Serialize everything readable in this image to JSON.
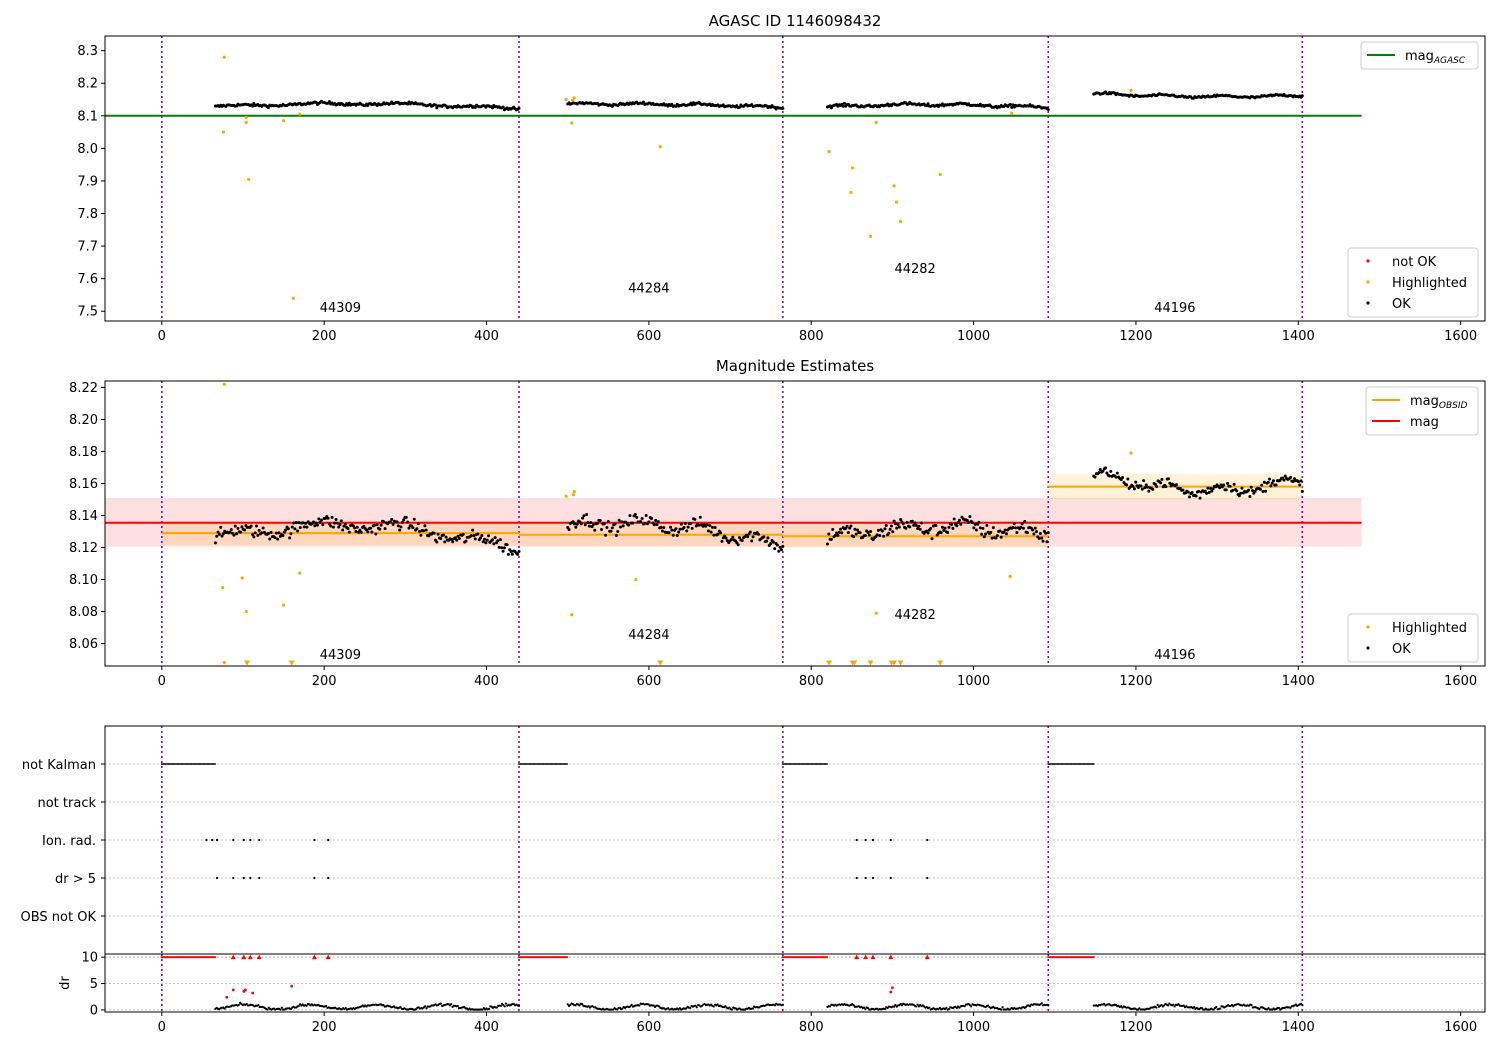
{
  "chart_data": [
    {
      "type": "scatter",
      "title": "AGASC ID 1146098432",
      "xlim": [
        -70,
        1630
      ],
      "ylim": [
        7.47,
        8.345
      ],
      "x_ticks": [
        0,
        200,
        400,
        600,
        800,
        1000,
        1200,
        1400,
        1600
      ],
      "y_ticks": [
        7.5,
        7.6,
        7.7,
        7.8,
        7.9,
        8.0,
        8.1,
        8.2,
        8.3
      ],
      "y_tick_decimals": 1,
      "obsid_boundaries": [
        0,
        440,
        765,
        1092,
        1405
      ],
      "obsid_labels": [
        {
          "text": "44309",
          "x": 220,
          "y": 7.51
        },
        {
          "text": "44284",
          "x": 600,
          "y": 7.57
        },
        {
          "text": "44282",
          "x": 928,
          "y": 7.63
        },
        {
          "text": "44196",
          "x": 1248,
          "y": 7.51
        }
      ],
      "lines": [
        {
          "name": "mag_AGASC",
          "color": "#008000",
          "x": [
            -70,
            1478
          ],
          "y": [
            8.1,
            8.1
          ]
        }
      ],
      "ok_segments": [
        {
          "x0": 66,
          "x1": 440,
          "y0": 8.128,
          "y1": 8.122,
          "bump": 0.012,
          "noise": 0.008,
          "count": 230
        },
        {
          "x0": 500,
          "x1": 765,
          "y0": 8.136,
          "y1": 8.126,
          "bump": 0.004,
          "noise": 0.007,
          "count": 160
        },
        {
          "x0": 820,
          "x1": 1092,
          "y0": 8.128,
          "y1": 8.125,
          "bump": 0.008,
          "noise": 0.008,
          "count": 170
        },
        {
          "x0": 1148,
          "x1": 1405,
          "y0": 8.168,
          "y1": 8.162,
          "bump": -0.006,
          "noise": 0.006,
          "count": 160
        }
      ],
      "highlighted": {
        "x": [
          77,
          76,
          104,
          104,
          107,
          150,
          162,
          170,
          498,
          505,
          508,
          506,
          614,
          880,
          822,
          851,
          849,
          873,
          902,
          905,
          910,
          959,
          1194,
          1047
        ],
        "y": [
          8.28,
          8.05,
          8.095,
          8.08,
          7.905,
          8.085,
          7.54,
          8.105,
          8.15,
          8.078,
          8.155,
          8.148,
          8.005,
          8.08,
          7.99,
          7.94,
          7.865,
          7.73,
          7.885,
          7.835,
          7.775,
          7.92,
          8.178,
          8.108
        ]
      },
      "legends": [
        {
          "position": "upper right",
          "entries": [
            {
              "label": "mag",
              "sub": "AGASC",
              "kind": "line",
              "color": "#008000"
            }
          ]
        },
        {
          "position": "lower right",
          "entries": [
            {
              "label": "not OK",
              "kind": "dot",
              "color": "#ff0000"
            },
            {
              "label": "Highlighted",
              "kind": "dot",
              "color": "#ffa500"
            },
            {
              "label": "OK",
              "kind": "dot",
              "color": "#000000"
            }
          ]
        }
      ]
    },
    {
      "type": "scatter",
      "title": "Magnitude Estimates",
      "xlim": [
        -70,
        1630
      ],
      "ylim": [
        8.046,
        8.224
      ],
      "x_ticks": [
        0,
        200,
        400,
        600,
        800,
        1000,
        1200,
        1400,
        1600
      ],
      "y_ticks": [
        8.06,
        8.08,
        8.1,
        8.12,
        8.14,
        8.16,
        8.18,
        8.2,
        8.22
      ],
      "y_tick_decimals": 2,
      "obsid_boundaries": [
        0,
        440,
        765,
        1092,
        1405
      ],
      "obsid_labels": [
        {
          "text": "44309",
          "x": 220,
          "y": 8.053
        },
        {
          "text": "44284",
          "x": 600,
          "y": 8.0655
        },
        {
          "text": "44282",
          "x": 928,
          "y": 8.078
        },
        {
          "text": "44196",
          "x": 1248,
          "y": 8.053
        }
      ],
      "bands": [
        {
          "x0": -70,
          "x1": 1478,
          "y0": 8.1205,
          "y1": 8.151,
          "color": "#ff0000",
          "opacity": 0.12
        },
        {
          "x0": 0,
          "x1": 440,
          "y0": 8.1215,
          "y1": 8.136,
          "color": "#ffa500",
          "opacity": 0.15
        },
        {
          "x0": 440,
          "x1": 765,
          "y0": 8.121,
          "y1": 8.135,
          "color": "#ffa500",
          "opacity": 0.15
        },
        {
          "x0": 765,
          "x1": 1092,
          "y0": 8.12,
          "y1": 8.134,
          "color": "#ffa500",
          "opacity": 0.15
        },
        {
          "x0": 1092,
          "x1": 1405,
          "y0": 8.15,
          "y1": 8.166,
          "color": "#ffa500",
          "opacity": 0.15
        }
      ],
      "lines": [
        {
          "name": "mag",
          "color": "#ff0000",
          "x": [
            -70,
            1478
          ],
          "y": [
            8.1355,
            8.1355
          ]
        },
        {
          "name": "mag_OBSID 44309",
          "color": "#ffa500",
          "x": [
            0,
            440
          ],
          "y": [
            8.129,
            8.129
          ]
        },
        {
          "name": "mag_OBSID 44284",
          "color": "#ffa500",
          "x": [
            440,
            765
          ],
          "y": [
            8.128,
            8.128
          ]
        },
        {
          "name": "mag_OBSID 44282",
          "color": "#ffa500",
          "x": [
            765,
            1092
          ],
          "y": [
            8.127,
            8.127
          ]
        },
        {
          "name": "mag_OBSID 44196",
          "color": "#ffa500",
          "x": [
            1092,
            1405
          ],
          "y": [
            8.158,
            8.158
          ]
        }
      ],
      "ok_segments": [
        {
          "x0": 66,
          "x1": 440,
          "y0": 8.126,
          "y1": 8.118,
          "bump": 0.012,
          "noise": 0.007,
          "count": 230
        },
        {
          "x0": 500,
          "x1": 765,
          "y0": 8.134,
          "y1": 8.121,
          "bump": 0.006,
          "noise": 0.007,
          "count": 160
        },
        {
          "x0": 820,
          "x1": 1092,
          "y0": 8.126,
          "y1": 8.128,
          "bump": 0.006,
          "noise": 0.008,
          "count": 170
        },
        {
          "x0": 1148,
          "x1": 1405,
          "y0": 8.166,
          "y1": 8.162,
          "bump": -0.008,
          "noise": 0.006,
          "count": 160
        }
      ],
      "highlighted": {
        "x": [
          77,
          75,
          99,
          104,
          150,
          170,
          498,
          505,
          507,
          508,
          584,
          880,
          1045,
          1194
        ],
        "y": [
          8.222,
          8.095,
          8.101,
          8.08,
          8.084,
          8.104,
          8.152,
          8.078,
          8.153,
          8.155,
          8.1,
          8.079,
          8.102,
          8.179
        ]
      },
      "highlighted_offscale": {
        "x": [
          77,
          105,
          160,
          614,
          822,
          851,
          853,
          873,
          899,
          902,
          910,
          959
        ],
        "y": [
          8.0476,
          8.0476,
          8.0476,
          8.0476,
          8.0476,
          8.0476,
          8.0476,
          8.0476,
          8.0476,
          8.0476,
          8.0476,
          8.0476
        ],
        "markers": [
          "dot",
          "triangle-down",
          "triangle-down",
          "triangle-down",
          "triangle-down",
          "triangle-down",
          "triangle-down",
          "triangle-down",
          "triangle-down",
          "triangle-down",
          "triangle-down",
          "triangle-down"
        ]
      },
      "legends": [
        {
          "position": "upper right",
          "entries": [
            {
              "label": "mag",
              "sub": "OBSID",
              "kind": "line",
              "color": "#ffa500"
            },
            {
              "label": "mag",
              "kind": "line",
              "color": "#ff0000"
            }
          ]
        },
        {
          "position": "lower right",
          "entries": [
            {
              "label": "Highlighted",
              "kind": "dot",
              "color": "#ffa500"
            },
            {
              "label": "OK",
              "kind": "dot",
              "color": "#000000"
            }
          ]
        }
      ]
    },
    {
      "type": "scatter",
      "title": "",
      "xlim": [
        -70,
        1630
      ],
      "x_ticks": [
        0,
        200,
        400,
        600,
        800,
        1000,
        1200,
        1400,
        1600
      ],
      "obsid_boundaries": [
        0,
        440,
        765,
        1092,
        1405
      ],
      "flag_rows": [
        {
          "label": "not Kalman",
          "ranges": [
            [
              0,
              66
            ],
            [
              440,
              500
            ],
            [
              765,
              820
            ],
            [
              1092,
              1148
            ]
          ]
        },
        {
          "label": "not track",
          "ranges": []
        },
        {
          "label": "Ion. rad.",
          "points": [
            55,
            62,
            68,
            88,
            101,
            109,
            120,
            188,
            205,
            856,
            867,
            876,
            898,
            943
          ]
        },
        {
          "label": "dr > 5",
          "points": [
            68,
            88,
            101,
            109,
            120,
            188,
            205,
            856,
            867,
            876,
            898,
            943
          ]
        },
        {
          "label": "OBS not OK",
          "ranges": []
        }
      ]
    },
    {
      "type": "scatter",
      "title": "",
      "ylabel": "dr",
      "xlim": [
        -70,
        1630
      ],
      "ylim": [
        -0.4,
        10.6
      ],
      "x_ticks": [
        0,
        200,
        400,
        600,
        800,
        1000,
        1200,
        1400,
        1600
      ],
      "y_ticks": [
        0,
        5,
        10
      ],
      "y_tick_decimals": 0,
      "obsid_boundaries": [
        0,
        440,
        765,
        1092,
        1405
      ],
      "capped_value": 10,
      "capped_ranges": [
        [
          0,
          66
        ],
        [
          440,
          500
        ],
        [
          765,
          820
        ],
        [
          1092,
          1148
        ]
      ],
      "capped_points": [
        88,
        101,
        109,
        120,
        188,
        205,
        856,
        867,
        876,
        898,
        943
      ],
      "ok_dr_segments": [
        {
          "x0": 66,
          "x1": 440
        },
        {
          "x0": 500,
          "x1": 765
        },
        {
          "x0": 820,
          "x1": 1092
        },
        {
          "x0": 1148,
          "x1": 1405
        }
      ],
      "dr_red": {
        "x": [
          80,
          88,
          101,
          103,
          112,
          160,
          898,
          900
        ],
        "y": [
          2.4,
          3.8,
          3.5,
          3.8,
          3.2,
          4.5,
          3.4,
          4.2
        ]
      }
    }
  ]
}
